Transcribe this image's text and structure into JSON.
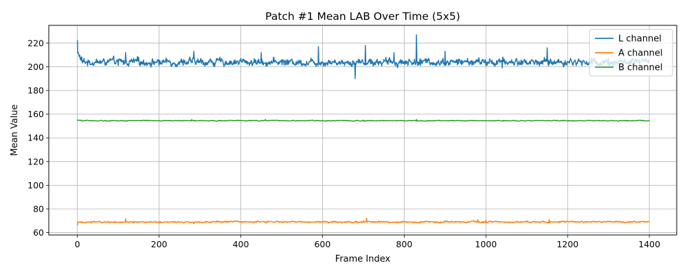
{
  "chart_data": {
    "type": "line",
    "title": "Patch #1 Mean LAB Over Time (5x5)",
    "xlabel": "Frame Index",
    "ylabel": "Mean Value",
    "xlim": [
      -70,
      1467
    ],
    "ylim": [
      58,
      235
    ],
    "xticks": [
      0,
      200,
      400,
      600,
      800,
      1000,
      1200,
      1400
    ],
    "yticks": [
      60,
      80,
      100,
      120,
      140,
      160,
      180,
      200,
      220
    ],
    "grid": true,
    "legend_position": "upper right",
    "n_frames": 1400,
    "series": [
      {
        "name": "L channel",
        "color": "#1f77b4",
        "base": 204,
        "amplitude": 4.5,
        "x": [
          0,
          10,
          20,
          50,
          80,
          100,
          118,
          150,
          200,
          260,
          285,
          330,
          380,
          400,
          450,
          500,
          560,
          590,
          640,
          680,
          705,
          720,
          760,
          775,
          830,
          840,
          860,
          900,
          950,
          1000,
          1040,
          1100,
          1150,
          1200,
          1260,
          1300,
          1350,
          1400
        ],
        "y": [
          214,
          207,
          204,
          205,
          207,
          201,
          212,
          208,
          201,
          206,
          213,
          204,
          202,
          207,
          212,
          206,
          201,
          217,
          203,
          190,
          218,
          206,
          202,
          212,
          227,
          201,
          207,
          213,
          204,
          201,
          199,
          204,
          216,
          204,
          202,
          207,
          205,
          204
        ]
      },
      {
        "name": "A channel",
        "color": "#ff7f0e",
        "base": 69,
        "amplitude": 0.9,
        "x": [
          0,
          10,
          50,
          118,
          200,
          285,
          400,
          500,
          600,
          700,
          708,
          800,
          900,
          980,
          1000,
          1100,
          1155,
          1200,
          1300,
          1400
        ],
        "y": [
          66,
          68.5,
          69,
          71.5,
          69,
          67.5,
          69,
          68.5,
          69,
          70,
          72,
          69,
          70,
          71,
          70.5,
          70,
          71,
          69.5,
          69.5,
          69.5
        ]
      },
      {
        "name": "B channel",
        "color": "#2ca02c",
        "base": 154.5,
        "amplitude": 0.5,
        "x": [
          0,
          100,
          200,
          280,
          300,
          400,
          460,
          500,
          600,
          700,
          800,
          830,
          900,
          1000,
          1100,
          1200,
          1300,
          1400
        ],
        "y": [
          155,
          154.5,
          154.5,
          155.5,
          154.5,
          154.5,
          155.5,
          154.5,
          154.5,
          155,
          154.5,
          155.5,
          154.5,
          154.5,
          154.5,
          154.5,
          154.5,
          154
        ]
      }
    ]
  }
}
